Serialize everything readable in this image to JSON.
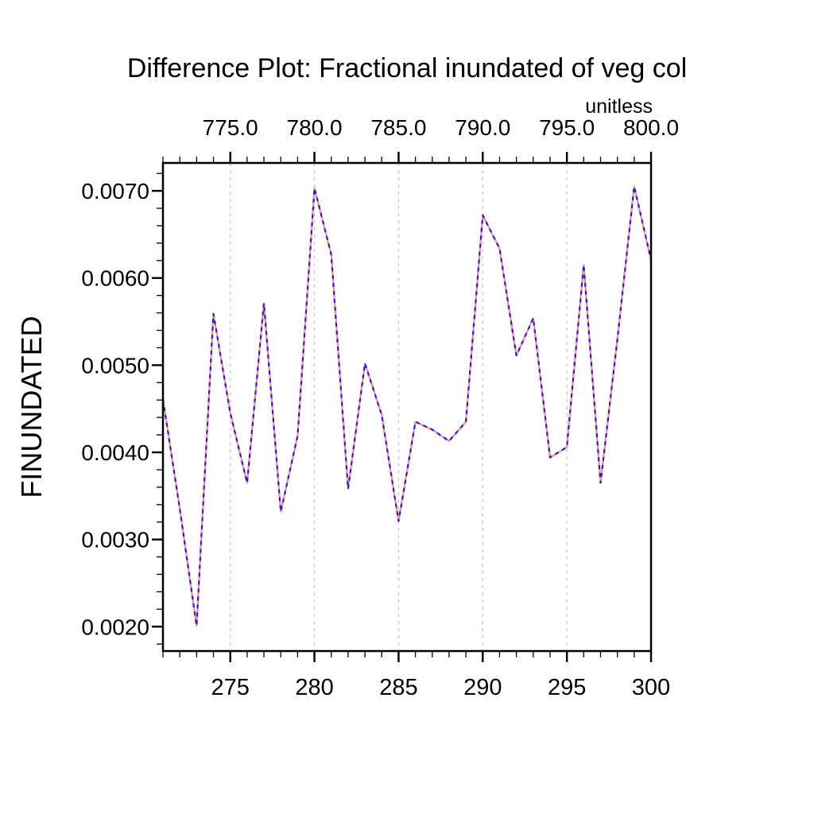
{
  "page": {
    "background": "#ffffff"
  },
  "chart_data": {
    "type": "line",
    "title": "Difference Plot: Fractional inundated of veg col",
    "units_label": "unitless",
    "x": [
      271,
      272,
      273,
      274,
      275,
      276,
      277,
      278,
      279,
      280,
      281,
      282,
      283,
      284,
      285,
      286,
      287,
      288,
      289,
      290,
      291,
      292,
      293,
      294,
      295,
      296,
      297,
      298,
      299,
      300
    ],
    "values": [
      0.00461,
      0.00335,
      0.00201,
      0.00559,
      0.00445,
      0.00365,
      0.00571,
      0.00332,
      0.00419,
      0.00703,
      0.00627,
      0.00358,
      0.00502,
      0.00443,
      0.00321,
      0.00435,
      0.00426,
      0.00413,
      0.00435,
      0.00672,
      0.00634,
      0.00511,
      0.00554,
      0.00394,
      0.00406,
      0.00615,
      0.00365,
      0.0053,
      0.00705,
      0.00621
    ],
    "series": [
      {
        "name": "line-solid",
        "color": "#ff8c8c",
        "style": "solid",
        "width": 2.2
      },
      {
        "name": "line-dashed",
        "color": "#2222cc",
        "style": "dashed",
        "dash": "5 5",
        "width": 2.2
      }
    ],
    "bottom_axis": {
      "range": [
        271,
        300
      ],
      "major_ticks": [
        275,
        280,
        285,
        290,
        295,
        300
      ],
      "tick_labels": [
        "275",
        "280",
        "285",
        "290",
        "295",
        "300"
      ],
      "minor_step": 1,
      "label_color": "#ff0000"
    },
    "top_axis": {
      "range": [
        771,
        800
      ],
      "major_ticks": [
        775,
        780,
        785,
        790,
        795,
        800
      ],
      "tick_labels": [
        "775.0",
        "780.0",
        "785.0",
        "790.0",
        "795.0",
        "800.0"
      ],
      "minor_step": 1,
      "label_color": "#0000ff"
    },
    "y_axis": {
      "label": "FINUNDATED",
      "range": [
        0.00172,
        0.00732
      ],
      "major_ticks": [
        0.002,
        0.003,
        0.004,
        0.005,
        0.006,
        0.007
      ],
      "tick_labels": [
        "0.0020",
        "0.0030",
        "0.0040",
        "0.0050",
        "0.0060",
        "0.0070"
      ],
      "minor_step": 0.0002,
      "label_color": "#000000"
    },
    "gridlines": {
      "x_at": [
        275,
        280,
        285,
        290,
        295
      ],
      "color": "#c3c3c3",
      "dash": "4 5"
    },
    "axis_color": "#000000"
  }
}
